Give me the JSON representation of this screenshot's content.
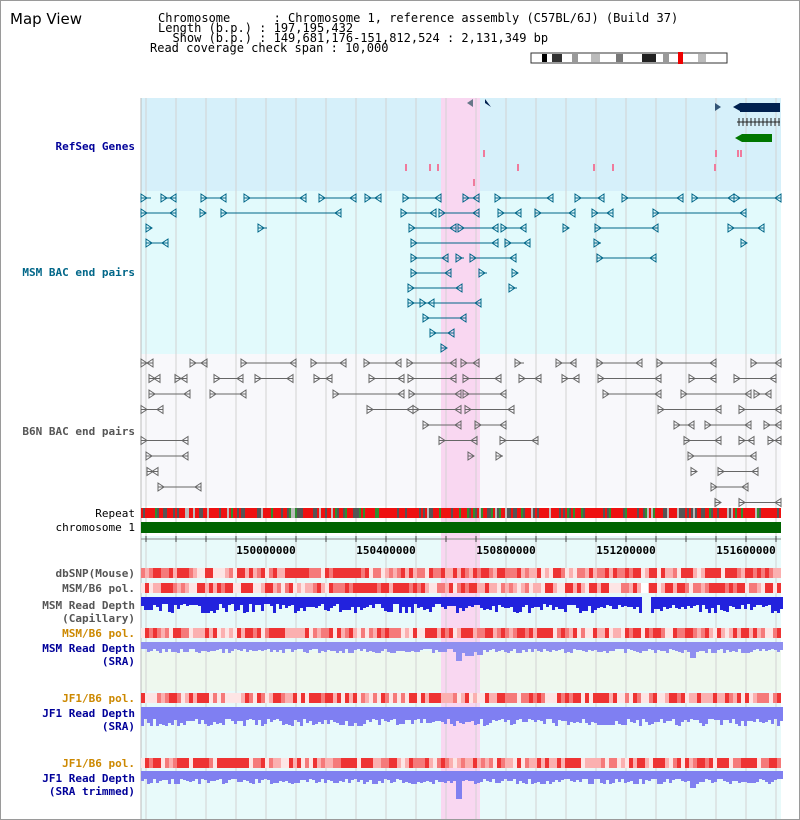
{
  "window": {
    "title": "Map View"
  },
  "info": {
    "chromosome_line": "Chromosome      : Chromosome 1, reference assembly (C57BL/6J) (Build 37)",
    "length_line": "Length (b.p.) : 197,195,432",
    "show_line": "  Show (b.p.) : 149,681,176-151,812,524 : 2,131,349 bp",
    "span_line": "Read coverage check span : 10,000"
  },
  "tracks": {
    "refseq": "RefSeq Genes",
    "msm_bac": "MSM BAC end pairs",
    "b6n_bac": "B6N BAC end pairs",
    "repeat": "Repeat",
    "chromosome": "chromosome 1",
    "dbsnp": "dbSNP(Mouse)",
    "msm_b6_pol_1": "MSM/B6 pol.",
    "msm_read_cap_1": "MSM Read Depth",
    "msm_read_cap_2": "(Capillary)",
    "msm_b6_pol_2": "MSM/B6 pol.",
    "msm_read_sra_1": "MSM Read Depth",
    "msm_read_sra_2": "(SRA)",
    "jf1_b6_pol_1": "JF1/B6 pol.",
    "jf1_read_sra_1": "JF1 Read Depth",
    "jf1_read_sra_2": "(SRA)",
    "jf1_b6_pol_2": "JF1/B6 pol.",
    "jf1_read_trim_1": "JF1 Read Depth",
    "jf1_read_trim_2": "(SRA trimmed)"
  },
  "axis": {
    "ticks": [
      "150000000",
      "150400000",
      "150800000",
      "151200000",
      "151600000"
    ]
  },
  "colors": {
    "refseq_label": "#000099",
    "msm_bac_label": "#006688",
    "b6n_bac_label": "#555555",
    "msm_label": "#000099",
    "pol_label": "#cc8800",
    "refseq_bg": "#d6f0fa",
    "msm_bac_bg": "#e2fafc",
    "b6n_bac_bg": "#f8f8fb",
    "bottom_bg": "#e8fafa",
    "highlight": "#f9d7f1",
    "chromosome_bar": "#006400",
    "gene_navy": "#00204f",
    "gene_green": "#007700"
  },
  "icons": {
    "ideogram": "chromosome-ideogram-icon",
    "arrow_left": "left-arrow-marker-icon",
    "arrow_right": "right-arrow-marker-icon"
  }
}
